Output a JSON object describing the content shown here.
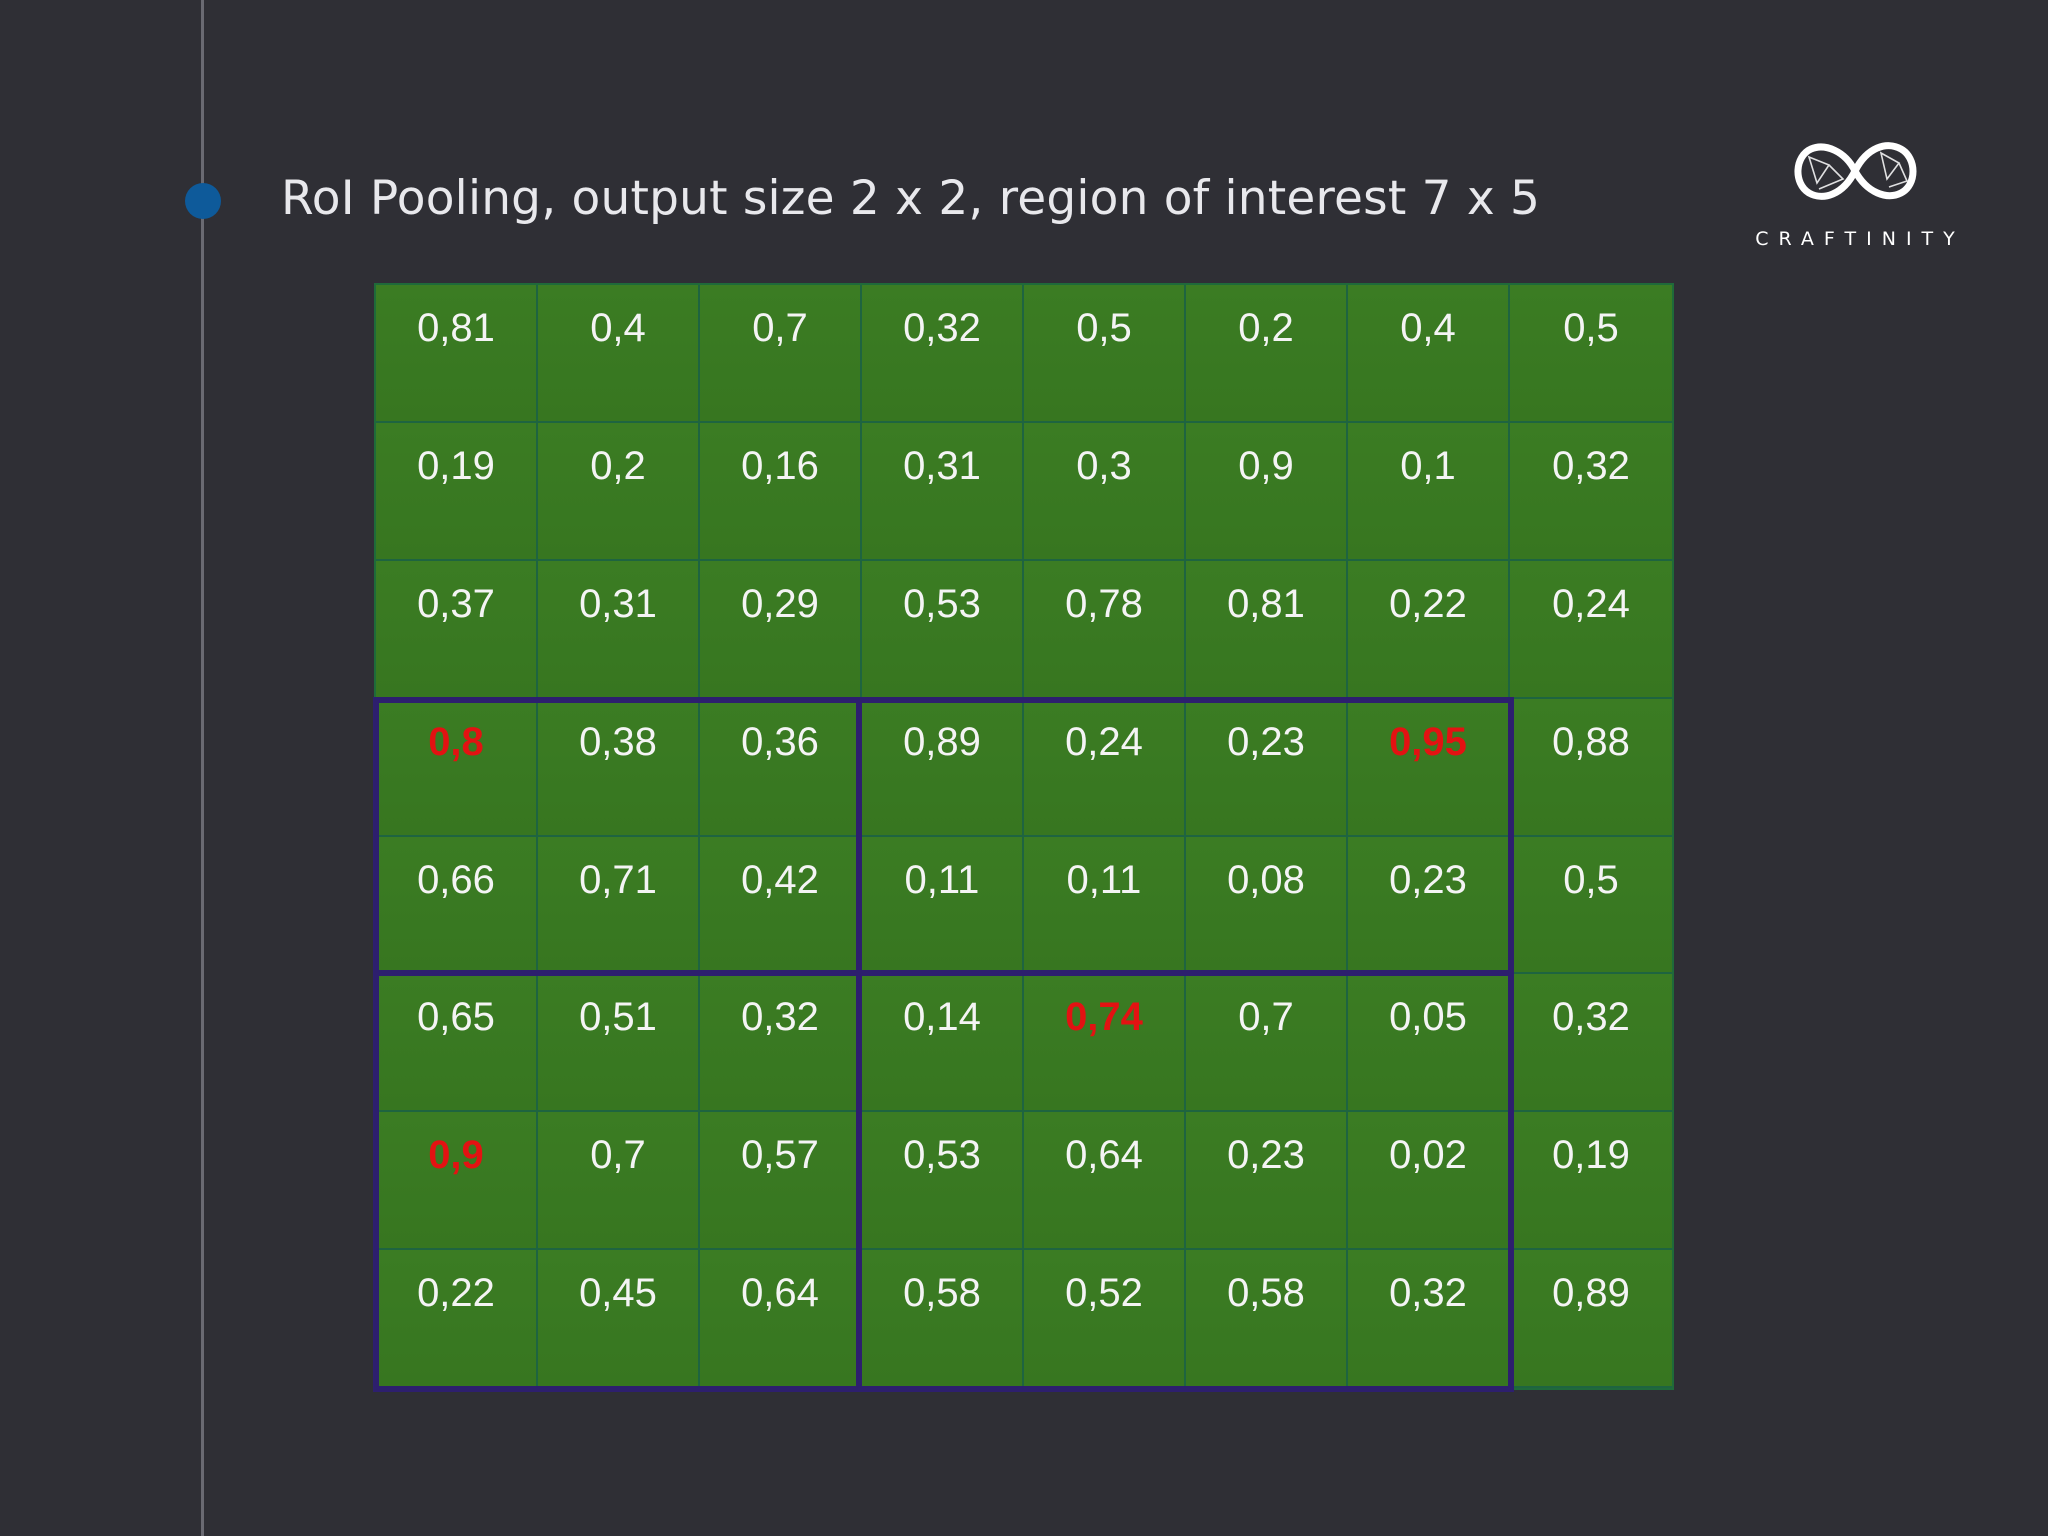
{
  "slide": {
    "title": "RoI Pooling, output size 2 x 2, region of interest 7 x 5"
  },
  "logo": {
    "text": "CRAFTINITY",
    "icon": "infinity-logo-icon"
  },
  "colors": {
    "background": "#2f2f35",
    "cell_fill": "#397a22",
    "roi_border": "#2d1f6e",
    "max_value": "#e31212",
    "bullet": "#0e5a9a"
  },
  "feature_map": {
    "rows": [
      [
        "0,81",
        "0,4",
        "0,7",
        "0,32",
        "0,5",
        "0,2",
        "0,4",
        "0,5"
      ],
      [
        "0,19",
        "0,2",
        "0,16",
        "0,31",
        "0,3",
        "0,9",
        "0,1",
        "0,32"
      ],
      [
        "0,37",
        "0,31",
        "0,29",
        "0,53",
        "0,78",
        "0,81",
        "0,22",
        "0,24"
      ],
      [
        "0,8",
        "0,38",
        "0,36",
        "0,89",
        "0,24",
        "0,23",
        "0,95",
        "0,88"
      ],
      [
        "0,66",
        "0,71",
        "0,42",
        "0,11",
        "0,11",
        "0,08",
        "0,23",
        "0,5"
      ],
      [
        "0,65",
        "0,51",
        "0,32",
        "0,14",
        "0,74",
        "0,7",
        "0,05",
        "0,32"
      ],
      [
        "0,9",
        "0,7",
        "0,57",
        "0,53",
        "0,64",
        "0,23",
        "0,02",
        "0,19"
      ],
      [
        "0,22",
        "0,45",
        "0,64",
        "0,58",
        "0,52",
        "0,58",
        "0,32",
        "0,89"
      ]
    ],
    "highlighted_max_cells": [
      [
        3,
        0
      ],
      [
        3,
        6
      ],
      [
        5,
        4
      ],
      [
        6,
        0
      ]
    ]
  },
  "region_of_interest": {
    "width_cells": 7,
    "height_cells": 5,
    "row_start": 3,
    "col_start": 0,
    "output_size": [
      2,
      2
    ],
    "split_after_col": 3,
    "split_after_row": 2
  }
}
